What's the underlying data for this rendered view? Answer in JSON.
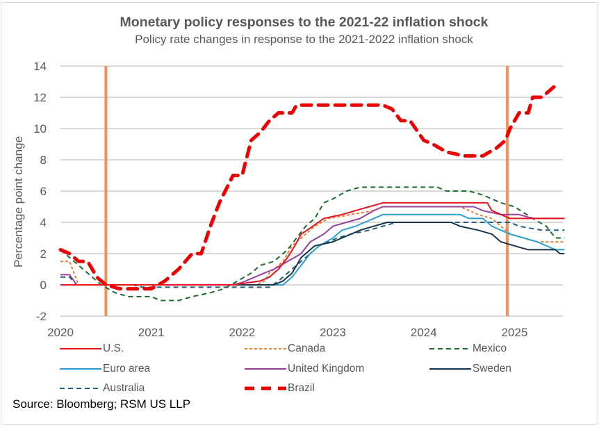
{
  "chart_data": {
    "type": "line",
    "title": "Monetary policy responses to the 2021-22 inflation shock",
    "subtitle": "Policy rate changes in response to the 2021-2022 inflation shock",
    "xlabel": "",
    "ylabel": "Percentage point change",
    "xlim": [
      2020,
      2025.55
    ],
    "ylim": [
      -2,
      14
    ],
    "x_ticks": [
      "2020",
      "2021",
      "2022",
      "2023",
      "2024",
      "2025"
    ],
    "y_ticks": [
      "-2",
      "0",
      "2",
      "4",
      "6",
      "8",
      "10",
      "12",
      "14"
    ],
    "grid": "horizontal",
    "vertical_markers": [
      2020.5,
      2024.92
    ],
    "marker_color": "#f0915a",
    "legend_position": "bottom",
    "source": "Source: Bloomberg; RSM US LLP",
    "series": [
      {
        "name": "U.S.",
        "color": "#e8141c",
        "style": "solid",
        "points": [
          [
            2020,
            0
          ],
          [
            2021.9,
            0
          ],
          [
            2022.2,
            0.25
          ],
          [
            2022.3,
            0.5
          ],
          [
            2022.4,
            1.0
          ],
          [
            2022.5,
            1.75
          ],
          [
            2022.58,
            2.5
          ],
          [
            2022.65,
            3.25
          ],
          [
            2022.78,
            3.75
          ],
          [
            2022.9,
            4.25
          ],
          [
            2023.1,
            4.5
          ],
          [
            2023.25,
            4.75
          ],
          [
            2023.4,
            5.0
          ],
          [
            2023.55,
            5.25
          ],
          [
            2024.7,
            5.25
          ],
          [
            2024.75,
            4.75
          ],
          [
            2024.85,
            4.5
          ],
          [
            2024.95,
            4.25
          ],
          [
            2025.55,
            4.25
          ]
        ]
      },
      {
        "name": "Canada",
        "color": "#ed7d31",
        "style": "dashed-fine",
        "points": [
          [
            2020,
            1.5
          ],
          [
            2020.1,
            1.5
          ],
          [
            2020.2,
            0
          ],
          [
            2022.15,
            0
          ],
          [
            2022.25,
            0.25
          ],
          [
            2022.3,
            0.75
          ],
          [
            2022.45,
            1.5
          ],
          [
            2022.55,
            2.5
          ],
          [
            2022.7,
            3.25
          ],
          [
            2022.8,
            3.75
          ],
          [
            2022.95,
            4.25
          ],
          [
            2023.2,
            4.5
          ],
          [
            2023.45,
            4.75
          ],
          [
            2023.55,
            5.0
          ],
          [
            2024.4,
            5.0
          ],
          [
            2024.5,
            4.75
          ],
          [
            2024.6,
            4.5
          ],
          [
            2024.75,
            4.25
          ],
          [
            2024.85,
            3.75
          ],
          [
            2024.95,
            3.25
          ],
          [
            2025.1,
            3.0
          ],
          [
            2025.25,
            2.75
          ],
          [
            2025.55,
            2.75
          ]
        ]
      },
      {
        "name": "Mexico",
        "color": "#1e6b2f",
        "style": "dashed",
        "points": [
          [
            2020,
            2.25
          ],
          [
            2020.15,
            1.5
          ],
          [
            2020.3,
            0.75
          ],
          [
            2020.45,
            0
          ],
          [
            2020.6,
            -0.5
          ],
          [
            2020.75,
            -0.75
          ],
          [
            2021.0,
            -0.75
          ],
          [
            2021.1,
            -1.0
          ],
          [
            2021.3,
            -1.0
          ],
          [
            2021.45,
            -0.75
          ],
          [
            2021.65,
            -0.5
          ],
          [
            2021.8,
            -0.25
          ],
          [
            2021.95,
            0.25
          ],
          [
            2022.1,
            0.75
          ],
          [
            2022.2,
            1.25
          ],
          [
            2022.35,
            1.5
          ],
          [
            2022.5,
            2.25
          ],
          [
            2022.6,
            3.0
          ],
          [
            2022.7,
            3.75
          ],
          [
            2022.8,
            4.25
          ],
          [
            2022.9,
            5.25
          ],
          [
            2023.0,
            5.5
          ],
          [
            2023.15,
            6.0
          ],
          [
            2023.3,
            6.25
          ],
          [
            2024.15,
            6.25
          ],
          [
            2024.25,
            6.0
          ],
          [
            2024.5,
            6.0
          ],
          [
            2024.65,
            5.75
          ],
          [
            2024.85,
            5.25
          ],
          [
            2025.0,
            5.0
          ],
          [
            2025.2,
            4.25
          ],
          [
            2025.35,
            3.75
          ],
          [
            2025.45,
            3.0
          ],
          [
            2025.55,
            3.0
          ]
        ]
      },
      {
        "name": "Euro area",
        "color": "#2e9fd2",
        "style": "solid",
        "points": [
          [
            2020,
            0
          ],
          [
            2022.45,
            0
          ],
          [
            2022.55,
            0.5
          ],
          [
            2022.65,
            1.25
          ],
          [
            2022.75,
            2.0
          ],
          [
            2022.85,
            2.5
          ],
          [
            2023.0,
            3.0
          ],
          [
            2023.1,
            3.5
          ],
          [
            2023.25,
            3.75
          ],
          [
            2023.35,
            4.0
          ],
          [
            2023.45,
            4.25
          ],
          [
            2023.55,
            4.5
          ],
          [
            2024.4,
            4.5
          ],
          [
            2024.5,
            4.25
          ],
          [
            2024.65,
            4.25
          ],
          [
            2024.75,
            3.75
          ],
          [
            2024.85,
            3.5
          ],
          [
            2024.95,
            3.25
          ],
          [
            2025.1,
            3.0
          ],
          [
            2025.25,
            2.75
          ],
          [
            2025.45,
            2.25
          ],
          [
            2025.55,
            2.25
          ]
        ]
      },
      {
        "name": "United Kingdom",
        "color": "#9b3f9f",
        "style": "solid",
        "points": [
          [
            2020,
            0.65
          ],
          [
            2020.1,
            0.65
          ],
          [
            2020.18,
            0
          ],
          [
            2021.9,
            0
          ],
          [
            2022.0,
            0.15
          ],
          [
            2022.1,
            0.4
          ],
          [
            2022.2,
            0.65
          ],
          [
            2022.35,
            1.0
          ],
          [
            2022.5,
            1.5
          ],
          [
            2022.65,
            2.0
          ],
          [
            2022.75,
            2.75
          ],
          [
            2022.9,
            3.25
          ],
          [
            2023.0,
            3.75
          ],
          [
            2023.15,
            4.0
          ],
          [
            2023.3,
            4.25
          ],
          [
            2023.45,
            4.75
          ],
          [
            2023.55,
            5.0
          ],
          [
            2024.55,
            5.0
          ],
          [
            2024.65,
            4.75
          ],
          [
            2024.85,
            4.5
          ],
          [
            2025.05,
            4.5
          ],
          [
            2025.2,
            4.25
          ],
          [
            2025.55,
            4.25
          ]
        ]
      },
      {
        "name": "Sweden",
        "color": "#17344a",
        "style": "solid",
        "points": [
          [
            2020,
            0
          ],
          [
            2022.35,
            0
          ],
          [
            2022.45,
            0.25
          ],
          [
            2022.55,
            0.75
          ],
          [
            2022.65,
            1.75
          ],
          [
            2022.8,
            2.5
          ],
          [
            2023.0,
            2.75
          ],
          [
            2023.1,
            3.0
          ],
          [
            2023.3,
            3.5
          ],
          [
            2023.45,
            3.75
          ],
          [
            2023.6,
            4.0
          ],
          [
            2024.3,
            4.0
          ],
          [
            2024.4,
            3.75
          ],
          [
            2024.6,
            3.5
          ],
          [
            2024.75,
            3.25
          ],
          [
            2024.85,
            2.75
          ],
          [
            2025.0,
            2.5
          ],
          [
            2025.15,
            2.25
          ],
          [
            2025.45,
            2.25
          ],
          [
            2025.5,
            2.0
          ],
          [
            2025.55,
            2.0
          ]
        ]
      },
      {
        "name": "Australia",
        "color": "#1f5f7a",
        "style": "dashed",
        "points": [
          [
            2020,
            0.5
          ],
          [
            2020.1,
            0.5
          ],
          [
            2020.18,
            0
          ],
          [
            2020.8,
            0
          ],
          [
            2020.9,
            -0.15
          ],
          [
            2022.3,
            -0.15
          ],
          [
            2022.4,
            0.25
          ],
          [
            2022.55,
            1.0
          ],
          [
            2022.7,
            1.75
          ],
          [
            2022.85,
            2.5
          ],
          [
            2023.05,
            3.0
          ],
          [
            2023.2,
            3.25
          ],
          [
            2023.4,
            3.5
          ],
          [
            2023.55,
            3.75
          ],
          [
            2023.7,
            4.0
          ],
          [
            2024.95,
            4.0
          ],
          [
            2025.05,
            3.75
          ],
          [
            2025.3,
            3.5
          ],
          [
            2025.55,
            3.5
          ]
        ]
      },
      {
        "name": "Brazil",
        "color": "#ee0000",
        "style": "dashed-bold",
        "points": [
          [
            2020,
            2.25
          ],
          [
            2020.1,
            2.0
          ],
          [
            2020.2,
            1.5
          ],
          [
            2020.3,
            1.5
          ],
          [
            2020.4,
            0.5
          ],
          [
            2020.5,
            0
          ],
          [
            2020.65,
            -0.25
          ],
          [
            2021.0,
            -0.25
          ],
          [
            2021.15,
            0.25
          ],
          [
            2021.3,
            1.0
          ],
          [
            2021.45,
            2.0
          ],
          [
            2021.55,
            2.0
          ],
          [
            2021.65,
            3.75
          ],
          [
            2021.75,
            5.25
          ],
          [
            2021.9,
            7.0
          ],
          [
            2022.0,
            7.0
          ],
          [
            2022.1,
            9.25
          ],
          [
            2022.2,
            9.75
          ],
          [
            2022.3,
            10.5
          ],
          [
            2022.4,
            11.0
          ],
          [
            2022.55,
            11.0
          ],
          [
            2022.6,
            11.5
          ],
          [
            2023.55,
            11.5
          ],
          [
            2023.65,
            11.25
          ],
          [
            2023.75,
            10.5
          ],
          [
            2023.85,
            10.5
          ],
          [
            2024.0,
            9.25
          ],
          [
            2024.1,
            9.0
          ],
          [
            2024.25,
            8.5
          ],
          [
            2024.45,
            8.25
          ],
          [
            2024.65,
            8.25
          ],
          [
            2024.8,
            8.75
          ],
          [
            2024.9,
            9.25
          ],
          [
            2024.95,
            10.0
          ],
          [
            2025.05,
            11.0
          ],
          [
            2025.15,
            11.0
          ],
          [
            2025.2,
            12.0
          ],
          [
            2025.3,
            12.0
          ],
          [
            2025.45,
            12.75
          ]
        ]
      }
    ]
  }
}
